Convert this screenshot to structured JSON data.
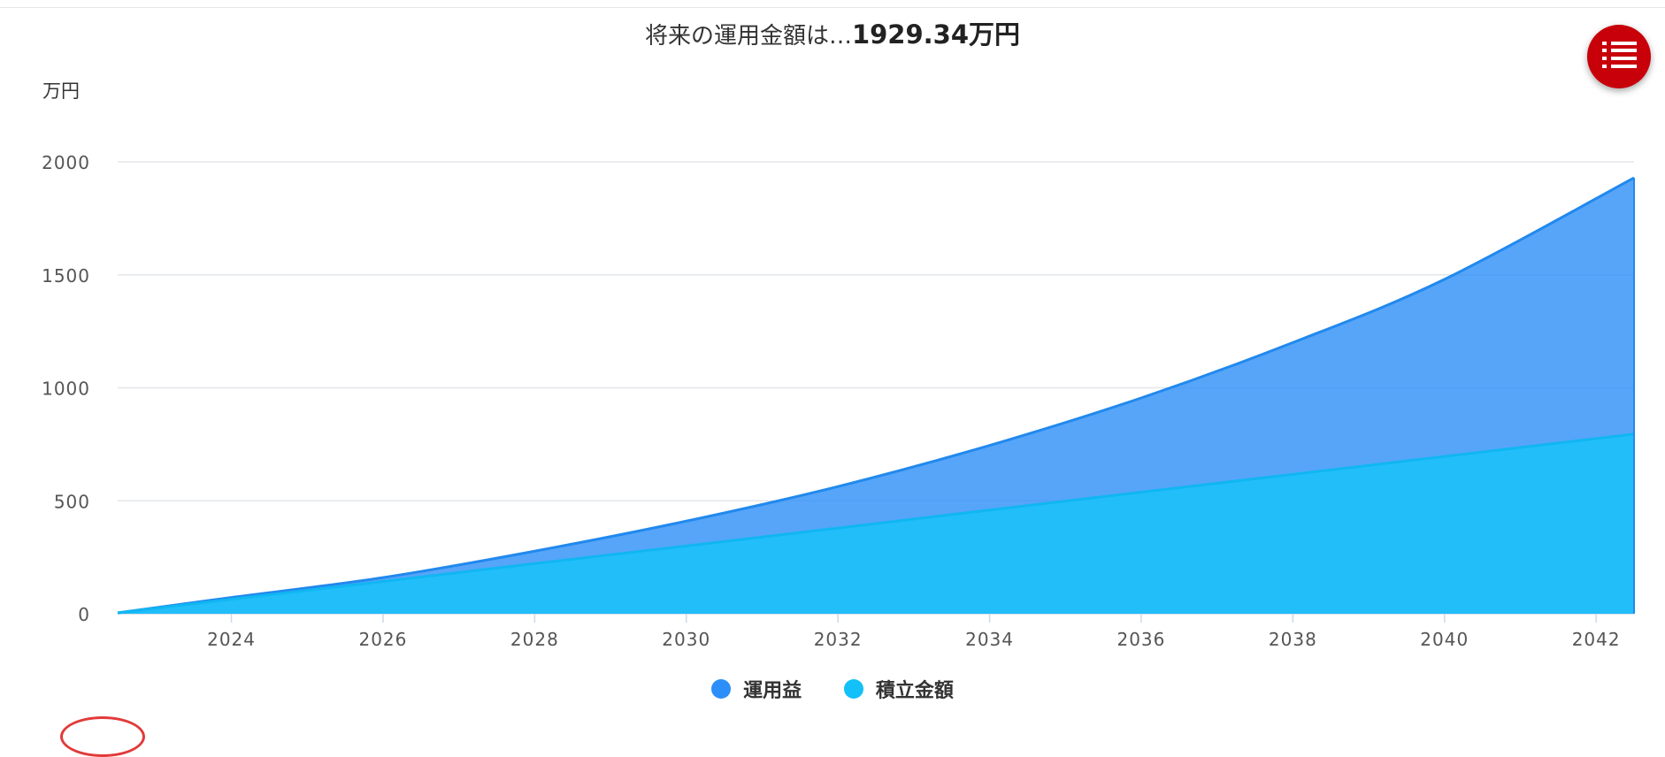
{
  "title": {
    "prefix": "将来の運用金額は…",
    "amount": "1929.34万円"
  },
  "menu": {
    "icon": "list-icon"
  },
  "colors": {
    "profit": "#2c8ef8",
    "principal": "#14c0f8",
    "menu_bg": "#c8000a"
  },
  "chart_data": {
    "type": "area",
    "stacked": true,
    "ylabel": "万円",
    "ylim": [
      0,
      2000
    ],
    "yticks": [
      0,
      500,
      1000,
      1500,
      2000
    ],
    "xlim": [
      2022.5,
      2042.5
    ],
    "xticks": [
      2024,
      2026,
      2028,
      2030,
      2032,
      2034,
      2036,
      2038,
      2040,
      2042
    ],
    "grid": true,
    "legend_position": "bottom",
    "x": [
      2022.5,
      2024,
      2026,
      2028,
      2030,
      2032,
      2034,
      2036,
      2038,
      2040,
      2042.5
    ],
    "series": [
      {
        "name": "運用益",
        "color": "#2c8ef8",
        "total": [
          4,
          72,
          160,
          277,
          410,
          563,
          745,
          955,
          1200,
          1480,
          1929.34
        ]
      },
      {
        "name": "積立金額",
        "color": "#14c0f8",
        "total": [
          4,
          64,
          143,
          222,
          300,
          379,
          459,
          538,
          617,
          696,
          795
        ]
      }
    ]
  }
}
